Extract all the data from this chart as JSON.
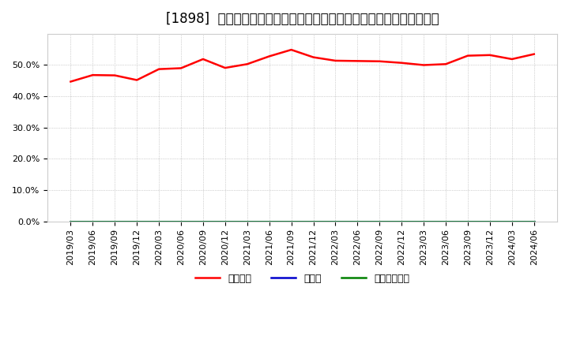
{
  "title": "[1898]  自己資本、のれん、繰延税金資産の総資産に対する比率の推移",
  "x_labels": [
    "2019/03",
    "2019/06",
    "2019/09",
    "2019/12",
    "2020/03",
    "2020/06",
    "2020/09",
    "2020/12",
    "2021/03",
    "2021/06",
    "2021/09",
    "2021/12",
    "2022/03",
    "2022/06",
    "2022/09",
    "2022/12",
    "2023/03",
    "2023/06",
    "2023/09",
    "2023/12",
    "2024/03",
    "2024/06"
  ],
  "jiko_shihon": [
    0.447,
    0.468,
    0.467,
    0.452,
    0.487,
    0.49,
    0.519,
    0.491,
    0.503,
    0.528,
    0.549,
    0.525,
    0.514,
    0.513,
    0.512,
    0.507,
    0.5,
    0.503,
    0.53,
    0.532,
    0.519,
    0.535
  ],
  "noren": [
    0,
    0,
    0,
    0,
    0,
    0,
    0,
    0,
    0,
    0,
    0,
    0,
    0,
    0,
    0,
    0,
    0,
    0,
    0,
    0,
    0,
    0
  ],
  "kuenzetsu": [
    0,
    0,
    0,
    0,
    0,
    0,
    0,
    0,
    0,
    0,
    0,
    0,
    0,
    0,
    0,
    0,
    0,
    0,
    0,
    0,
    0,
    0
  ],
  "jiko_color": "#ff0000",
  "noren_color": "#0000cc",
  "kuenzetsu_color": "#008000",
  "legend_labels": [
    "自己資本",
    "のれん",
    "繰延税金資産"
  ],
  "ylim": [
    0.0,
    0.6
  ],
  "yticks": [
    0.0,
    0.1,
    0.2,
    0.3,
    0.4,
    0.5
  ],
  "background_color": "#ffffff",
  "plot_bg_color": "#ffffff",
  "grid_color": "#aaaaaa",
  "title_fontsize": 12,
  "axis_fontsize": 8,
  "legend_fontsize": 9
}
